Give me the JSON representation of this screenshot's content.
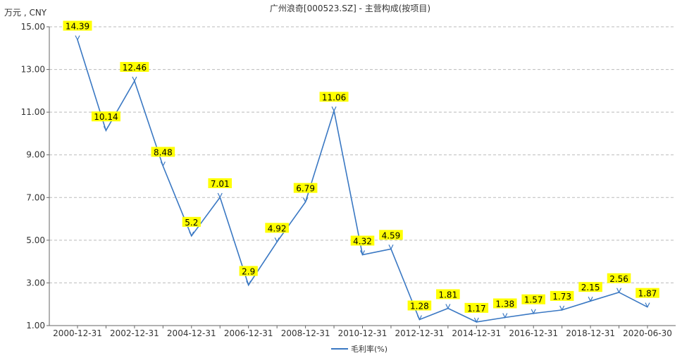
{
  "chart_data": {
    "type": "line",
    "title": "广州浪奇[000523.SZ] - 主营构成(按项目)",
    "unit_label": "万元 , CNY",
    "xlabel": "",
    "ylabel": "",
    "ylim": [
      1.0,
      15.0
    ],
    "yticks": [
      "1.00",
      "3.00",
      "5.00",
      "7.00",
      "9.00",
      "11.00",
      "13.00",
      "15.00"
    ],
    "xticks": [
      "2000-12-31",
      "2002-12-31",
      "2004-12-31",
      "2006-12-31",
      "2008-12-31",
      "2010-12-31",
      "2012-12-31",
      "2014-12-31",
      "2016-12-31",
      "2018-12-31",
      "2020-06-30"
    ],
    "grid": true,
    "legend_position": "bottom",
    "series": [
      {
        "name": "毛利率(%)",
        "color": "#3a78c3",
        "label_bg": "#ffff00",
        "values": [
          14.39,
          10.14,
          12.46,
          8.48,
          5.2,
          7.01,
          2.9,
          4.92,
          6.79,
          11.06,
          4.32,
          4.59,
          1.28,
          1.81,
          1.17,
          1.38,
          1.57,
          1.73,
          2.15,
          2.56,
          1.87
        ],
        "labels": [
          "14.39",
          "10.14",
          "12.46",
          "8.48",
          "5.2",
          "7.01",
          "2.9",
          "4.92",
          "6.79",
          "11.06",
          "4.32",
          "4.59",
          "1.28",
          "1.81",
          "1.17",
          "1.38",
          "1.57",
          "1.73",
          "2.15",
          "2.56",
          "1.87"
        ]
      }
    ]
  }
}
